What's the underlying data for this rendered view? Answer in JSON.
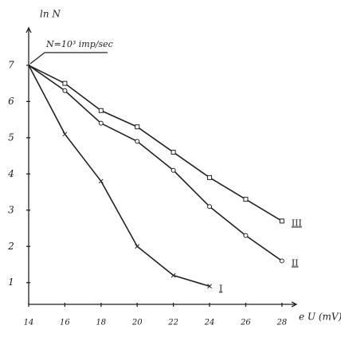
{
  "chart_data": {
    "type": "line",
    "y_label": "ln N",
    "x_label": "e U (mV)",
    "annotation": "N=10³ imp/sec",
    "x": [
      14,
      16,
      18,
      20,
      22,
      24,
      26,
      28
    ],
    "series": [
      {
        "name": "I",
        "color": "#222222",
        "marker": "x",
        "values": [
          7,
          5.1,
          3.8,
          2.0,
          1.2,
          0.9,
          null,
          null
        ]
      },
      {
        "name": "II",
        "color": "#222222",
        "marker": "circle",
        "values": [
          7,
          6.3,
          5.4,
          4.9,
          4.1,
          3.1,
          2.3,
          1.6
        ]
      },
      {
        "name": "III",
        "color": "#222222",
        "marker": "square",
        "values": [
          7,
          6.5,
          5.75,
          5.3,
          4.6,
          3.9,
          3.3,
          2.7
        ]
      }
    ],
    "xlim": [
      14,
      28.8
    ],
    "ylim": [
      0.4,
      7.9
    ],
    "xticks": [
      14,
      16,
      18,
      20,
      22,
      24,
      26,
      28
    ],
    "yticks": [
      1,
      2,
      3,
      4,
      5,
      6,
      7
    ],
    "grid": false
  }
}
